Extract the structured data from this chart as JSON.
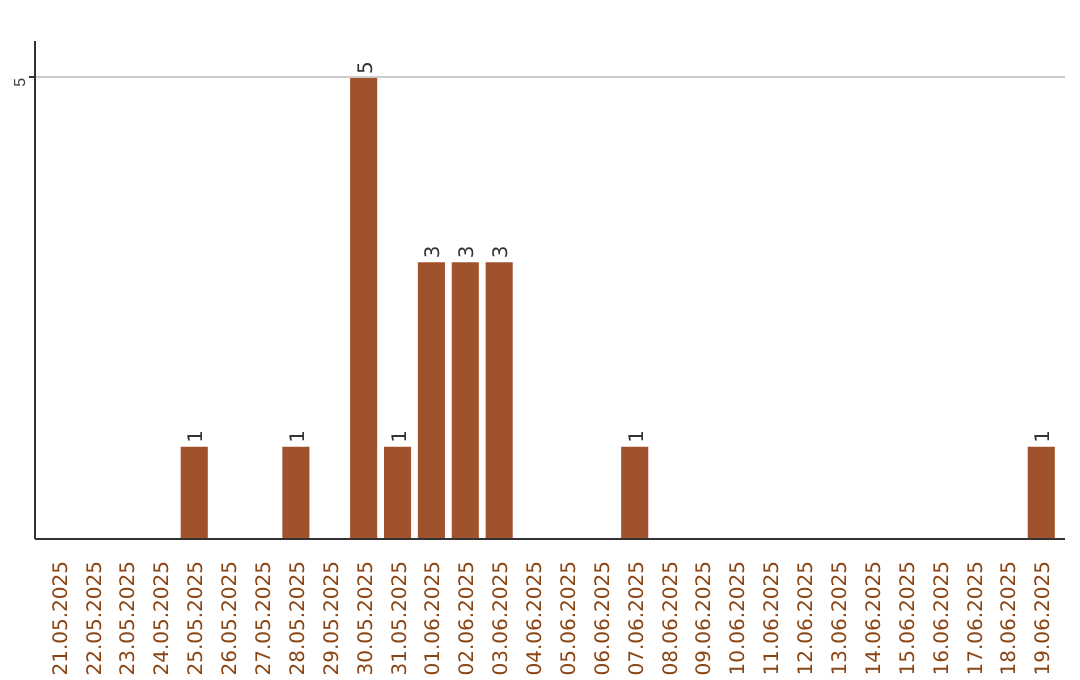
{
  "chart_data": {
    "type": "bar",
    "categories": [
      "21.05.2025",
      "22.05.2025",
      "23.05.2025",
      "24.05.2025",
      "25.05.2025",
      "26.05.2025",
      "27.05.2025",
      "28.05.2025",
      "29.05.2025",
      "30.05.2025",
      "31.05.2025",
      "01.06.2025",
      "02.06.2025",
      "03.06.2025",
      "04.06.2025",
      "05.06.2025",
      "06.06.2025",
      "07.06.2025",
      "08.06.2025",
      "09.06.2025",
      "10.06.2025",
      "11.06.2025",
      "12.06.2025",
      "13.06.2025",
      "14.06.2025",
      "15.06.2025",
      "16.06.2025",
      "17.06.2025",
      "18.06.2025",
      "19.06.2025"
    ],
    "values": [
      0,
      0,
      0,
      0,
      1,
      0,
      0,
      1,
      0,
      5,
      1,
      3,
      3,
      3,
      0,
      0,
      0,
      1,
      0,
      0,
      0,
      0,
      0,
      0,
      0,
      0,
      0,
      0,
      0,
      1
    ],
    "value_labels": [
      null,
      null,
      null,
      null,
      "1",
      null,
      null,
      "1",
      null,
      "5",
      "1",
      "3",
      "3",
      "3",
      null,
      null,
      null,
      "1",
      null,
      null,
      null,
      null,
      null,
      null,
      null,
      null,
      null,
      null,
      null,
      "1"
    ],
    "color": "#a0522d",
    "ylim": [
      0,
      5.4
    ],
    "yticks": [
      5
    ],
    "grid": "y"
  }
}
